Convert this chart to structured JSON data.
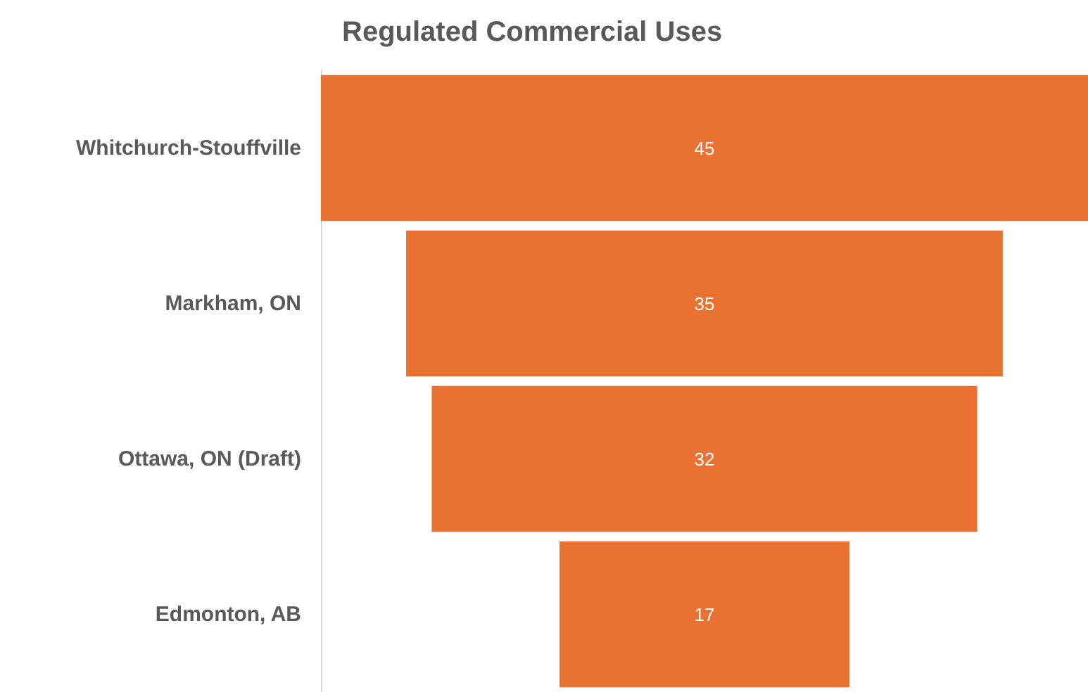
{
  "chart_data": {
    "type": "other",
    "title": "Regulated Commercial Uses",
    "categories": [
      "Whitchurch-Stouffville",
      "Markham, ON",
      "Ottawa, ON (Draft)",
      "Edmonton, AB"
    ],
    "values": [
      45,
      35,
      32,
      17
    ],
    "color": "#e97132",
    "data_labels": true
  }
}
